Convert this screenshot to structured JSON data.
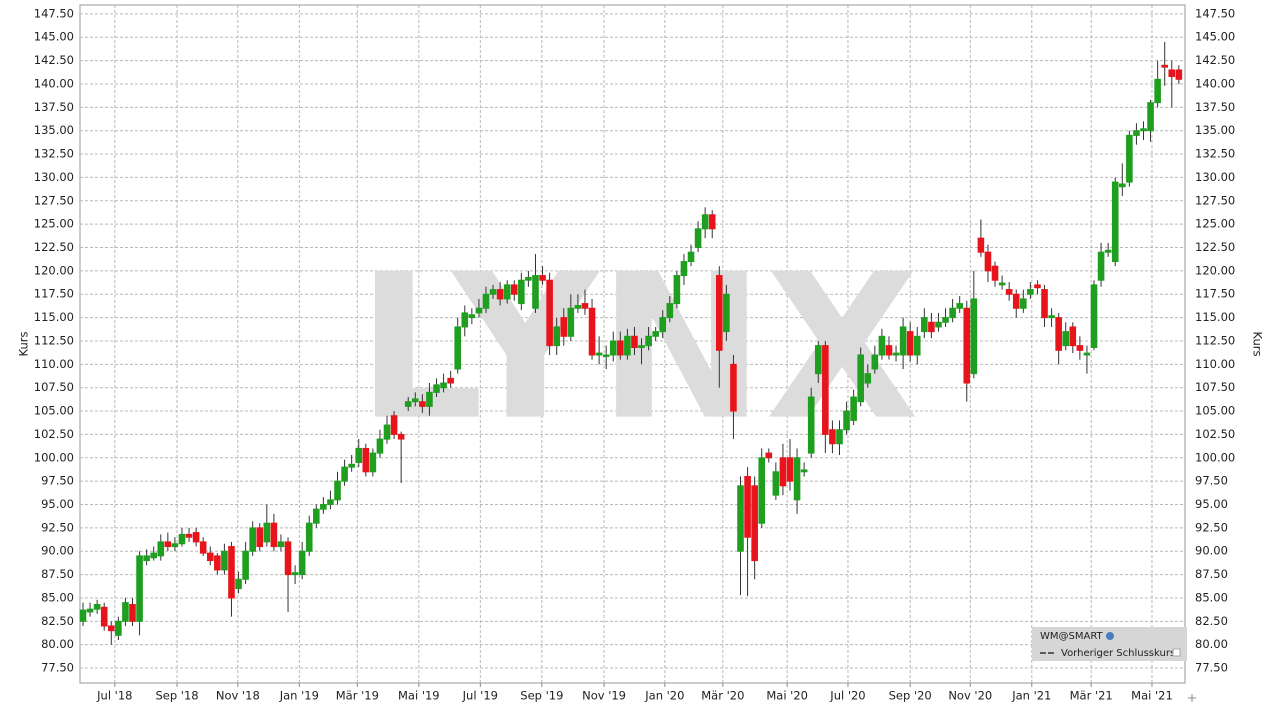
{
  "chart_data": {
    "type": "candlestick",
    "y_label": "Kurs",
    "watermark": "LYNX",
    "legend_note": "Vorheriger Schlusskurs",
    "grid": true,
    "ylim": [
      75.9,
      148.45
    ],
    "yticks": [
      {
        "value": 77.5,
        "label": "77.50"
      },
      {
        "value": 80,
        "label": "80.00"
      },
      {
        "value": 82.5,
        "label": "82.50"
      },
      {
        "value": 85,
        "label": "85.00"
      },
      {
        "value": 87.5,
        "label": "87.50"
      },
      {
        "value": 90,
        "label": "90.00"
      },
      {
        "value": 92.5,
        "label": "92.50"
      },
      {
        "value": 95,
        "label": "95.00"
      },
      {
        "value": 97.5,
        "label": "97.50"
      },
      {
        "value": 100,
        "label": "100.00"
      },
      {
        "value": 102.5,
        "label": "102.50"
      },
      {
        "value": 105,
        "label": "105.00"
      },
      {
        "value": 107.5,
        "label": "107.50"
      },
      {
        "value": 110,
        "label": "110.00"
      },
      {
        "value": 112.5,
        "label": "112.50"
      },
      {
        "value": 115,
        "label": "115.00"
      },
      {
        "value": 117.5,
        "label": "117.50"
      },
      {
        "value": 120,
        "label": "120.00"
      },
      {
        "value": 122.5,
        "label": "122.50"
      },
      {
        "value": 125,
        "label": "125.00"
      },
      {
        "value": 127.5,
        "label": "127.50"
      },
      {
        "value": 130,
        "label": "130.00"
      },
      {
        "value": 132.5,
        "label": "132.50"
      },
      {
        "value": 135,
        "label": "135.00"
      },
      {
        "value": 137.5,
        "label": "137.50"
      },
      {
        "value": 140,
        "label": "140.00"
      },
      {
        "value": 142.5,
        "label": "142.50"
      },
      {
        "value": 145,
        "label": "145.00"
      },
      {
        "value": 147.5,
        "label": "147.50"
      }
    ],
    "xticks": [
      {
        "value": 4.5,
        "label": "Jul '18"
      },
      {
        "value": 13.3,
        "label": "Sep '18"
      },
      {
        "value": 21.9,
        "label": "Nov '18"
      },
      {
        "value": 30.6,
        "label": "Jan '19"
      },
      {
        "value": 38.8,
        "label": "Mär '19"
      },
      {
        "value": 47.5,
        "label": "Mai '19"
      },
      {
        "value": 56.2,
        "label": "Jul '19"
      },
      {
        "value": 64.9,
        "label": "Sep '19"
      },
      {
        "value": 73.7,
        "label": "Nov '19"
      },
      {
        "value": 82.3,
        "label": "Jan '20"
      },
      {
        "value": 90.5,
        "label": "Mär '20"
      },
      {
        "value": 99.6,
        "label": "Mai '20"
      },
      {
        "value": 108.2,
        "label": "Jul '20"
      },
      {
        "value": 117.0,
        "label": "Sep '20"
      },
      {
        "value": 125.5,
        "label": "Nov '20"
      },
      {
        "value": 134.2,
        "label": "Jan '21"
      },
      {
        "value": 142.6,
        "label": "Mär '21"
      },
      {
        "value": 151.2,
        "label": "Mai '21"
      }
    ],
    "series": [
      {
        "name": "WM@SMART",
        "up_color": "#1f9e1f",
        "down_color": "#e8141c",
        "open": [
          82.5,
          83.5,
          83.8,
          84,
          82,
          81,
          82.5,
          84.3,
          82.5,
          89,
          89.3,
          89.5,
          91,
          90.5,
          90.8,
          91.8,
          92,
          91,
          89.8,
          89.5,
          88,
          90.5,
          86,
          87,
          90,
          92.5,
          91,
          93,
          90.5,
          91,
          87.5,
          87.5,
          90,
          93,
          94.5,
          95,
          95.5,
          97.5,
          99,
          99.5,
          101,
          98.5,
          100.5,
          102,
          104.5,
          102.5,
          105.5,
          106,
          106,
          105.5,
          107,
          107.5,
          108.5,
          109.5,
          114,
          115,
          115.5,
          116,
          117.5,
          118,
          117,
          118.5,
          116.5,
          119,
          116,
          119.5,
          119,
          112,
          115,
          113,
          116,
          116.5,
          116,
          111,
          111,
          111,
          112.5,
          111,
          113,
          111.8,
          112,
          113,
          113.5,
          115,
          116.5,
          119.5,
          121,
          122.5,
          124.5,
          126,
          119.5,
          113.5,
          110,
          90,
          98,
          97,
          93,
          100.5,
          96,
          100,
          100,
          95.5,
          98.5,
          100.5,
          109,
          112,
          103,
          101.5,
          103,
          104,
          106,
          108,
          109.5,
          111,
          112,
          111,
          111,
          113.5,
          111,
          113.5,
          114.5,
          114,
          114.5,
          115,
          116,
          116,
          109,
          123.5,
          122,
          120.5,
          118.5,
          118,
          117.5,
          116,
          117.5,
          118.5,
          118,
          115,
          115,
          112,
          114,
          112,
          111,
          111.8,
          119,
          122,
          121,
          129,
          129.5,
          134.5,
          135,
          135,
          138,
          142,
          141.5,
          141.5
        ],
        "high": [
          84.5,
          84.5,
          84.8,
          84.5,
          82.5,
          83,
          85,
          85,
          90,
          90.2,
          90.5,
          91.8,
          92,
          91.5,
          92.5,
          92.5,
          92.5,
          91.5,
          90.5,
          89.8,
          90.8,
          91,
          87.8,
          91,
          93.2,
          93,
          95,
          94,
          91.8,
          91.5,
          88.5,
          91,
          93.8,
          95,
          95.8,
          96.5,
          98.5,
          99.8,
          100.3,
          102,
          101.5,
          101,
          103,
          104.5,
          105,
          102.8,
          106.5,
          107,
          106.8,
          108,
          108.5,
          109,
          109.3,
          115,
          116.3,
          116,
          117,
          118.3,
          118.5,
          118.8,
          119,
          119,
          119.8,
          120,
          121.8,
          120.5,
          119.8,
          115,
          116,
          117.5,
          117.5,
          118,
          117,
          113,
          112,
          113.5,
          113.5,
          113.8,
          114,
          112.8,
          114,
          114,
          115.8,
          117.3,
          120,
          121.8,
          122.8,
          125.3,
          126.8,
          126.5,
          120.5,
          118.5,
          111,
          98,
          99,
          98,
          101,
          101,
          99.5,
          101.5,
          102,
          101,
          99.5,
          107.5,
          112.5,
          112.5,
          104,
          104,
          106,
          107.3,
          111.8,
          110,
          112,
          113.8,
          113,
          112,
          115,
          114.5,
          114,
          116,
          115.5,
          115.5,
          116,
          117,
          117.3,
          116.8,
          120,
          125.5,
          122.8,
          121,
          119.5,
          118.8,
          118,
          118,
          118.8,
          119,
          118.5,
          116,
          115.5,
          114.5,
          114.5,
          113,
          112,
          119,
          123,
          123,
          130,
          131.5,
          135,
          135.8,
          136,
          138.3,
          142.5,
          144.5,
          142.5,
          142
        ],
        "low": [
          82,
          83,
          83.3,
          81.5,
          80,
          80.5,
          82,
          82,
          81,
          88.5,
          89,
          89,
          90,
          90,
          90.5,
          91,
          90.5,
          89.5,
          88.5,
          87.5,
          87.5,
          83,
          85.5,
          86.5,
          89.5,
          90,
          90.5,
          90,
          90,
          83.5,
          86.5,
          87,
          89.5,
          92.5,
          94,
          94.5,
          95,
          97,
          98.5,
          99,
          98,
          98,
          100,
          101.5,
          102,
          97.3,
          105,
          105.5,
          104.8,
          104.5,
          106.5,
          107,
          107.5,
          109,
          113,
          114.3,
          115,
          115.5,
          117,
          116.3,
          116.5,
          116.8,
          115.8,
          118.3,
          115.5,
          118.5,
          111,
          111,
          112,
          112.5,
          115.5,
          115.3,
          110.5,
          110,
          109.5,
          110.3,
          110.5,
          110.5,
          111,
          110,
          111.5,
          112.5,
          112.8,
          114.5,
          116,
          118.5,
          120.5,
          122,
          123.5,
          123.5,
          107.5,
          112.5,
          102,
          85.3,
          85.2,
          87,
          92.5,
          99.5,
          95.5,
          96,
          96.5,
          94,
          98,
          100,
          108,
          100.5,
          100.5,
          100.3,
          102.5,
          103.5,
          105.5,
          107.5,
          109,
          110.5,
          110.5,
          110.3,
          109.5,
          110.3,
          110,
          112.8,
          112.8,
          113.5,
          114,
          114.5,
          115.5,
          106,
          108.5,
          121.5,
          118.8,
          118.3,
          118,
          116.8,
          115,
          115.5,
          117,
          117.5,
          114,
          114,
          110,
          111.5,
          111.2,
          110.5,
          109,
          111.5,
          118.3,
          121.5,
          120.5,
          128,
          129,
          133.5,
          134,
          133.8,
          137.5,
          139.8,
          137.5,
          140
        ],
        "close": [
          83.7,
          83.8,
          84.3,
          82,
          81.5,
          82.5,
          84.5,
          82.5,
          89.5,
          89.5,
          89.8,
          91,
          90.5,
          90.8,
          91.8,
          91.5,
          91,
          89.8,
          89,
          88,
          90,
          85,
          87,
          90,
          92.5,
          90.5,
          93,
          90.5,
          91,
          87.5,
          87.7,
          90,
          93,
          94.5,
          95,
          95.5,
          97.5,
          99,
          99.3,
          101,
          98.5,
          100.5,
          102,
          103.5,
          102.5,
          102,
          106,
          106.3,
          105.5,
          107,
          107.8,
          108,
          108,
          114,
          115.5,
          115.3,
          116,
          117.5,
          118,
          117,
          118.5,
          117.5,
          119,
          119.3,
          119.5,
          119,
          112,
          114,
          113,
          116,
          116.3,
          116,
          111,
          111.2,
          111,
          112.5,
          111,
          113,
          111.8,
          112,
          113,
          113.5,
          115,
          116.5,
          119.5,
          121,
          122,
          124.5,
          126,
          124.5,
          111.5,
          117.5,
          105,
          97,
          91.5,
          89,
          100,
          100,
          98.5,
          97,
          97.5,
          100,
          98.7,
          106.5,
          112,
          102.5,
          101.5,
          103,
          105,
          106.5,
          111,
          109,
          111,
          113,
          111,
          111.2,
          114,
          111,
          113,
          115,
          113.5,
          114.5,
          115,
          116,
          116.5,
          108,
          117,
          122,
          120,
          119,
          118.7,
          117.5,
          116,
          117,
          118,
          118.2,
          115,
          115.2,
          111.5,
          113.5,
          112,
          111.5,
          111.2,
          118.5,
          122,
          122.2,
          129.5,
          129.3,
          134.5,
          135,
          135.2,
          138,
          140.5,
          141.8,
          140.8,
          140.5
        ]
      }
    ]
  }
}
